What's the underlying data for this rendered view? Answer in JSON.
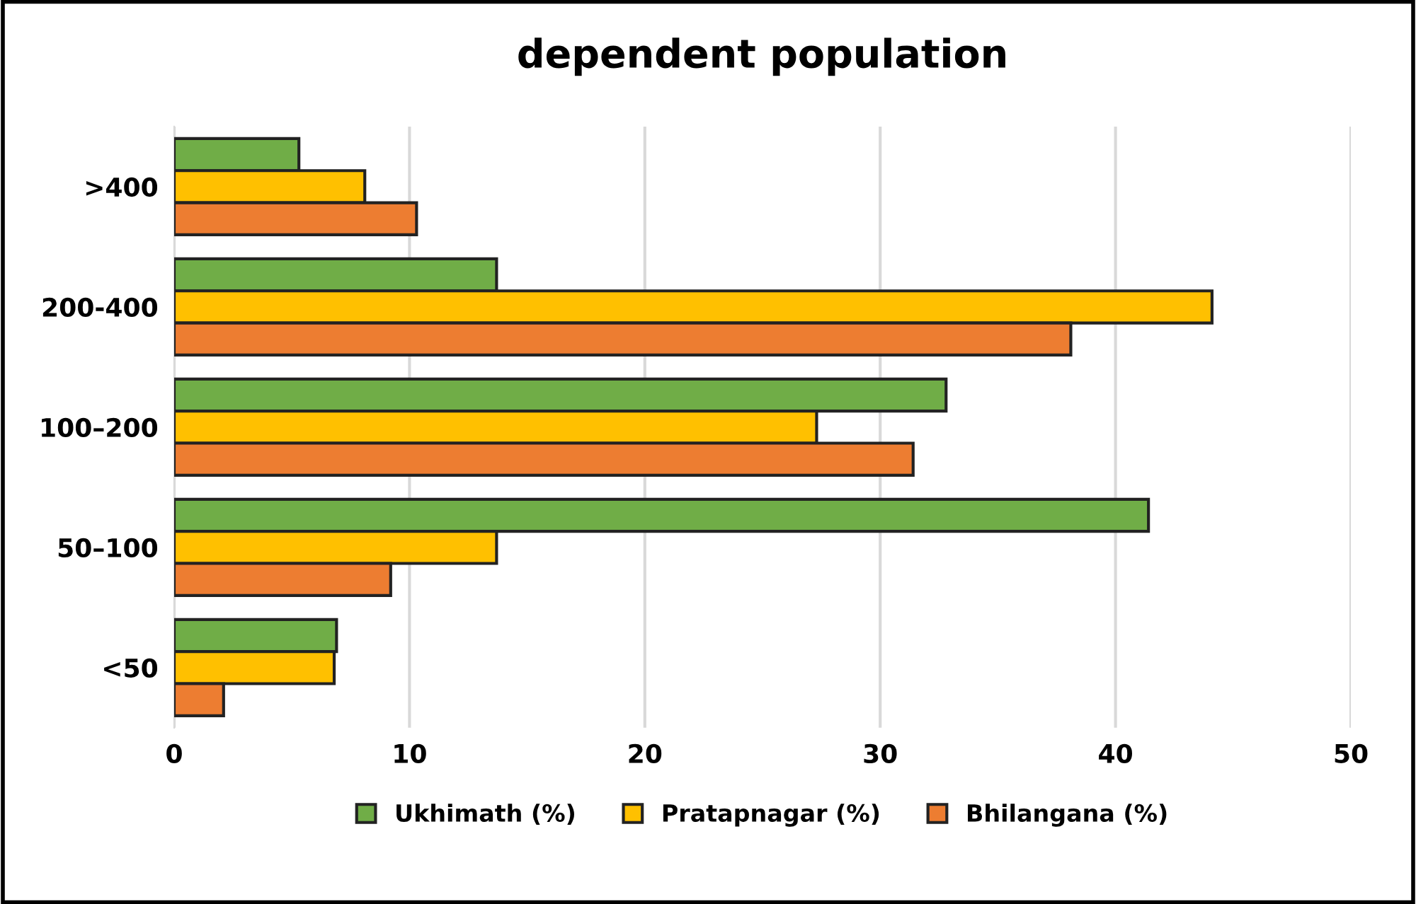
{
  "chart_data": {
    "type": "bar",
    "orientation": "horizontal",
    "title": "dependent population",
    "categories": [
      ">400",
      "200-400",
      "100–200",
      "50–100",
      "<50"
    ],
    "series": [
      {
        "name": "Ukhimath (%)",
        "color": "#70ad47",
        "values": [
          5.3,
          13.7,
          32.8,
          41.4,
          6.9
        ]
      },
      {
        "name": "Pratapnagar (%)",
        "color": "#ffc000",
        "values": [
          8.1,
          44.1,
          27.3,
          13.7,
          6.8
        ]
      },
      {
        "name": "Bhilangana (%)",
        "color": "#ed7d31",
        "values": [
          10.3,
          38.1,
          31.4,
          9.2,
          2.1
        ]
      }
    ],
    "xlim": [
      0,
      50
    ],
    "xticks": [
      0,
      10,
      20,
      30,
      40,
      50
    ],
    "grid": "x",
    "legend": "bottom"
  }
}
